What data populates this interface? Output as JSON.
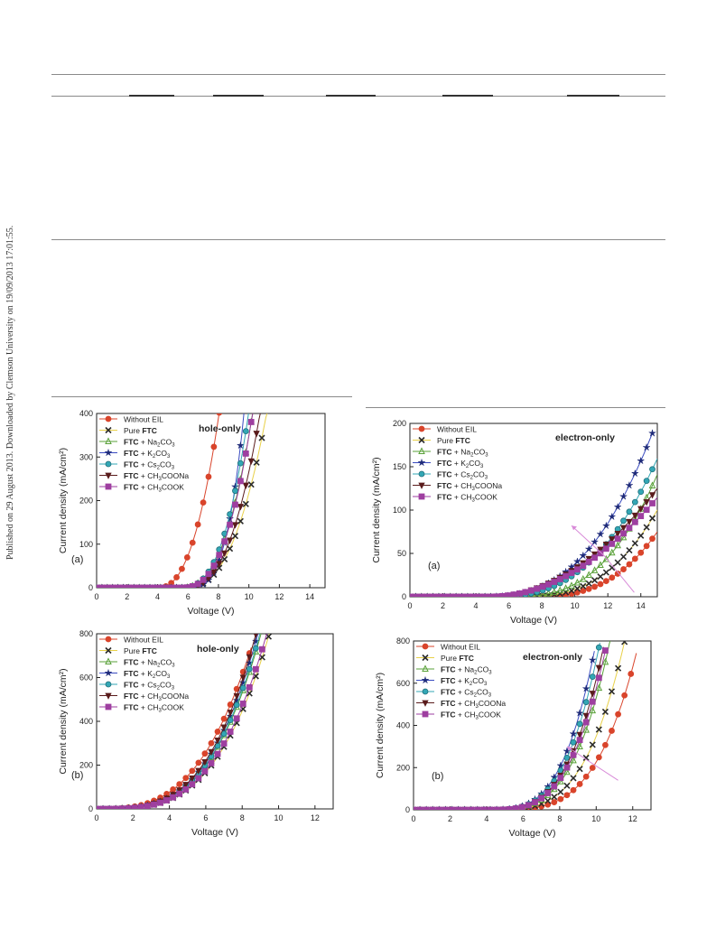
{
  "side_note": "Published on 29 August 2013. Downloaded by Clemson University on 19/09/2013 17:01:55.",
  "legend_series": [
    {
      "prefix": "Without EIL",
      "bold": "",
      "rest": "",
      "sub": "",
      "tail": "",
      "color": "#d9442b",
      "marker": "circle"
    },
    {
      "prefix": "Pure ",
      "bold": "FTC",
      "rest": "",
      "sub": "",
      "tail": "",
      "color": "#2b2b2b",
      "marker": "x"
    },
    {
      "prefix": "",
      "bold": "FTC",
      "rest": " + Na",
      "sub": "2",
      "tail": "CO3",
      "color": "#5aa13a",
      "marker": "triangle"
    },
    {
      "prefix": "",
      "bold": "FTC",
      "rest": " + K",
      "sub": "2",
      "tail": "CO3",
      "color": "#1e2a78",
      "marker": "star"
    },
    {
      "prefix": "",
      "bold": "FTC",
      "rest": " + Cs",
      "sub": "2",
      "tail": "CO3",
      "color": "#33a7b5",
      "marker": "hex"
    },
    {
      "prefix": "",
      "bold": "FTC",
      "rest": " + CH",
      "sub": "3",
      "tail": "COONa",
      "color": "#5a1c1c",
      "marker": "tri_down"
    },
    {
      "prefix": "",
      "bold": "FTC",
      "rest": " + CH",
      "sub": "3",
      "tail": "COOK",
      "color": "#9e3fa0",
      "marker": "square"
    }
  ],
  "line_colors": [
    "#d9442b",
    "#e8d048",
    "#5aa13a",
    "#3a4bc0",
    "#33a7b5",
    "#5a1c1c",
    "#9e3fa0"
  ],
  "chart_data": [
    {
      "type": "line",
      "panel_label": "(a)",
      "annotation": "hole-only",
      "xlabel": "Voltage (V)",
      "ylabel": "Current density (mA/cm²)",
      "xlim": [
        0,
        15
      ],
      "ylim": [
        0,
        400
      ],
      "xticks": [
        0,
        2,
        4,
        6,
        8,
        10,
        12,
        14
      ],
      "yticks": [
        0,
        100,
        200,
        300,
        400
      ],
      "grid": false,
      "legend": "top-left",
      "series": [
        {
          "name": "Without EIL",
          "onset": 4.0,
          "a": 14,
          "p": 2.4,
          "xmax": 10.3
        },
        {
          "name": "Pure FTC",
          "onset": 5.8,
          "a": 6,
          "p": 2.5,
          "xmax": 14.5
        },
        {
          "name": "FTC + Na2CO3",
          "onset": 5.5,
          "a": 7,
          "p": 2.6,
          "xmax": 11.8
        },
        {
          "name": "FTC + K2CO3",
          "onset": 5.8,
          "a": 4,
          "p": 3.4,
          "xmax": 11.2
        },
        {
          "name": "FTC + Cs2CO3",
          "onset": 5.5,
          "a": 7,
          "p": 2.7,
          "xmax": 11.8
        },
        {
          "name": "FTC + CH3COONa",
          "onset": 5.7,
          "a": 6,
          "p": 2.6,
          "xmax": 12.8
        },
        {
          "name": "FTC + CH3COOK",
          "onset": 5.5,
          "a": 6,
          "p": 2.7,
          "xmax": 12.2
        }
      ]
    },
    {
      "type": "line",
      "panel_label": "(a)",
      "annotation": "electron-only",
      "xlabel": "Voltage (V)",
      "ylabel": "Current density (mA/cm²)",
      "xlim": [
        0,
        15
      ],
      "ylim": [
        0,
        200
      ],
      "xticks": [
        0,
        2,
        4,
        6,
        8,
        10,
        12,
        14
      ],
      "yticks": [
        0,
        50,
        100,
        150,
        200
      ],
      "grid": false,
      "legend": "top-left",
      "series": [
        {
          "name": "Without EIL",
          "onset": 7.0,
          "a": 0.18,
          "p": 2.9,
          "xmax": 15
        },
        {
          "name": "Pure FTC",
          "onset": 6.5,
          "a": 0.25,
          "p": 2.8,
          "xmax": 15
        },
        {
          "name": "FTC + Na2CO3",
          "onset": 6.0,
          "a": 0.3,
          "p": 2.8,
          "xmax": 15
        },
        {
          "name": "FTC + K2CO3",
          "onset": 4.5,
          "a": 0.45,
          "p": 2.6,
          "xmax": 14.7
        },
        {
          "name": "FTC + Cs2CO3",
          "onset": 5.0,
          "a": 0.4,
          "p": 2.6,
          "xmax": 15
        },
        {
          "name": "FTC + CH3COONa",
          "onset": 4.8,
          "a": 1.2,
          "p": 2.0,
          "xmax": 15
        },
        {
          "name": "FTC + CH3COOK",
          "onset": 4.8,
          "a": 1.1,
          "p": 2.0,
          "xmax": 15
        }
      ]
    },
    {
      "type": "line",
      "panel_label": "(b)",
      "annotation": "hole-only",
      "xlabel": "Voltage (V)",
      "ylabel": "Current density (mA/cm²)",
      "xlim": [
        0,
        13
      ],
      "ylim": [
        0,
        800
      ],
      "xticks": [
        0,
        2,
        4,
        6,
        8,
        10,
        12
      ],
      "yticks": [
        0,
        200,
        400,
        600,
        800
      ],
      "grid": false,
      "legend": "top-left",
      "series": [
        {
          "name": "Without EIL",
          "onset": 0,
          "a": 1.2,
          "p": 3.0,
          "xmax": 8.5
        },
        {
          "name": "Pure FTC",
          "onset": 0,
          "a": 0.38,
          "p": 3.4,
          "xmax": 11.2
        },
        {
          "name": "FTC + Na2CO3",
          "onset": 0,
          "a": 0.45,
          "p": 3.4,
          "xmax": 10.4
        },
        {
          "name": "FTC + K2CO3",
          "onset": 0,
          "a": 0.48,
          "p": 3.4,
          "xmax": 10.2
        },
        {
          "name": "FTC + Cs2CO3",
          "onset": 0,
          "a": 0.46,
          "p": 3.4,
          "xmax": 10.3
        },
        {
          "name": "FTC + CH3COONa",
          "onset": 0,
          "a": 0.5,
          "p": 3.4,
          "xmax": 10.1
        },
        {
          "name": "FTC + CH3COOK",
          "onset": 0,
          "a": 0.4,
          "p": 3.4,
          "xmax": 10.8
        }
      ]
    },
    {
      "type": "line",
      "panel_label": "(b)",
      "annotation": "electron-only",
      "xlabel": "Voltage (V)",
      "ylabel": "Current density (mA/cm²)",
      "xlim": [
        0,
        13
      ],
      "ylim": [
        0,
        800
      ],
      "xticks": [
        0,
        2,
        4,
        6,
        8,
        10,
        12
      ],
      "yticks": [
        0,
        200,
        400,
        600,
        800
      ],
      "grid": false,
      "legend": "top-left",
      "series": [
        {
          "name": "Without EIL",
          "onset": 4.0,
          "a": 0.25,
          "p": 3.8,
          "xmax": 12.2
        },
        {
          "name": "Pure FTC",
          "onset": 4.0,
          "a": 0.55,
          "p": 3.6,
          "xmax": 11.6
        },
        {
          "name": "FTC + Na2CO3",
          "onset": 4.0,
          "a": 1.0,
          "p": 3.5,
          "xmax": 10.9
        },
        {
          "name": "FTC + K2CO3",
          "onset": 4.0,
          "a": 1.8,
          "p": 3.4,
          "xmax": 9.9
        },
        {
          "name": "FTC + Cs2CO3",
          "onset": 4.0,
          "a": 1.6,
          "p": 3.4,
          "xmax": 10.2
        },
        {
          "name": "FTC + CH3COONa",
          "onset": 4.0,
          "a": 1.4,
          "p": 3.4,
          "xmax": 10.4
        },
        {
          "name": "FTC + CH3COOK",
          "onset": 4.0,
          "a": 1.3,
          "p": 3.4,
          "xmax": 10.5
        }
      ]
    }
  ]
}
